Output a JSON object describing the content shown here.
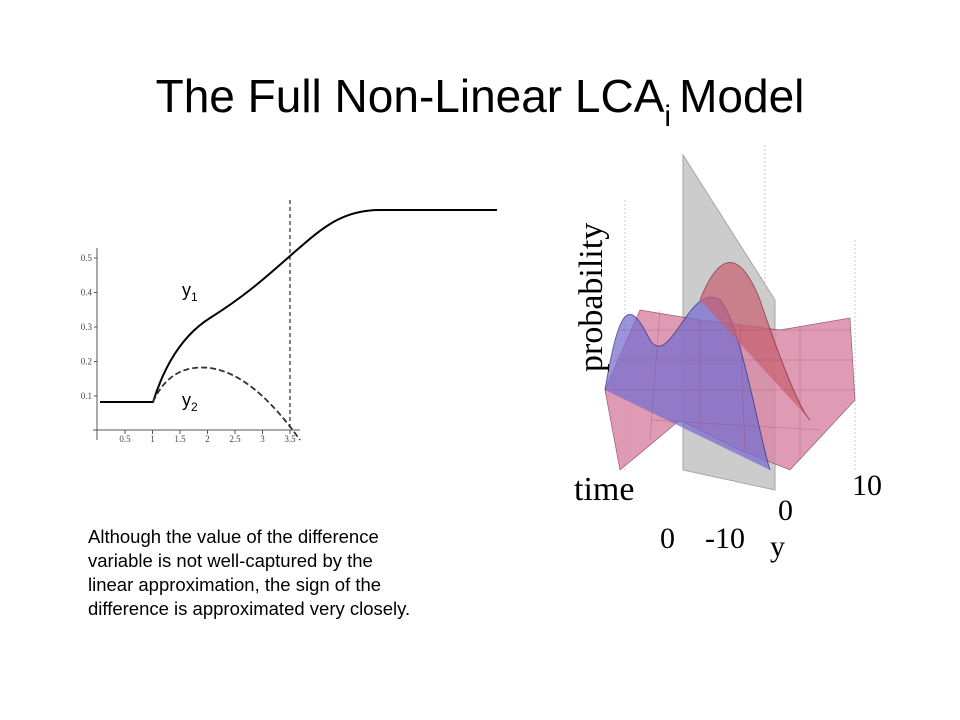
{
  "title": {
    "main": "The Full Non-Linear LCA",
    "subscript": "i",
    "suffix": "Model"
  },
  "plot": {
    "xticks": [
      0.5,
      1,
      1.5,
      2,
      2.5,
      3,
      3.5
    ],
    "yticks": [
      0.1,
      0.2,
      0.3,
      0.4,
      0.5
    ],
    "curve_labels": [
      {
        "base": "y",
        "sub": "1"
      },
      {
        "base": "y",
        "sub": "2"
      }
    ]
  },
  "caption": [
    "Although the value of the difference",
    "variable is not well-captured by the",
    "linear approximation, the sign of the",
    "difference is approximated very closely."
  ],
  "surface_plot": {
    "z_label": "probability",
    "time_label": "time",
    "time_tick": "0",
    "y_ticks": [
      "-10",
      "0",
      "10"
    ],
    "y_label": "y"
  }
}
